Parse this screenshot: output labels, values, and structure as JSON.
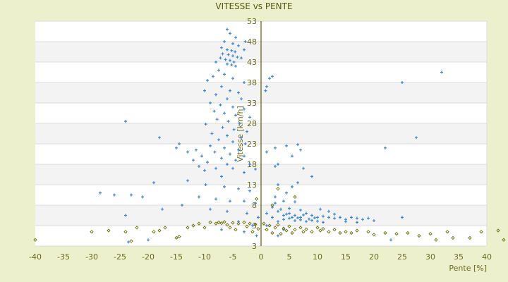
{
  "chart_data": {
    "type": "scatter",
    "title": "VITESSE vs PENTE",
    "xlabel": "Pente [%]",
    "ylabel": "Vitesse [km/h]",
    "xlim": [
      -40,
      40
    ],
    "ylim": [
      -2,
      53
    ],
    "xticks": [
      "-40",
      "-35",
      "-30",
      "-25",
      "-20",
      "-15",
      "-10",
      "-5",
      "0",
      "5",
      "10",
      "15",
      "20",
      "25",
      "30",
      "35",
      "40"
    ],
    "yticks": [
      "53",
      "48",
      "43",
      "38",
      "33",
      "28",
      "23",
      "18",
      "13",
      "8",
      "3",
      "3"
    ],
    "grid": true,
    "legend": "none",
    "colors": {
      "series1": "#3a86d6",
      "series2": "#6b6f00",
      "axis": "#5a5a00",
      "band": "#f3f3f3"
    },
    "series": [
      {
        "marker": "plus",
        "points": [
          [
            -6,
            51
          ],
          [
            -5.5,
            50
          ],
          [
            -4.5,
            49
          ],
          [
            -6.5,
            48
          ],
          [
            -5,
            47.5
          ],
          [
            -4,
            47
          ],
          [
            -7,
            46.5
          ],
          [
            -6,
            46
          ],
          [
            -5.2,
            45.8
          ],
          [
            -4.6,
            45.5
          ],
          [
            -6.8,
            45
          ],
          [
            -5.8,
            44.8
          ],
          [
            -5,
            44.5
          ],
          [
            -4.2,
            44.2
          ],
          [
            -7.2,
            44
          ],
          [
            -6.3,
            43.6
          ],
          [
            -5.5,
            43.4
          ],
          [
            -4.8,
            43
          ],
          [
            -6,
            42.5
          ],
          [
            -5.2,
            42.3
          ],
          [
            -4.5,
            42
          ],
          [
            -3,
            46
          ],
          [
            -2.8,
            48
          ],
          [
            -3.5,
            44
          ],
          [
            -8,
            43
          ],
          [
            -7.5,
            41
          ],
          [
            -6.5,
            40
          ],
          [
            -8.5,
            39.5
          ],
          [
            -5,
            39
          ],
          [
            -3,
            38
          ],
          [
            -9.5,
            38.5
          ],
          [
            -7,
            37
          ],
          [
            -5.5,
            36
          ],
          [
            -4,
            35.5
          ],
          [
            -10,
            36
          ],
          [
            -8,
            35
          ],
          [
            -6,
            34
          ],
          [
            -3.5,
            34
          ],
          [
            -9,
            33
          ],
          [
            -7.2,
            32.5
          ],
          [
            -5,
            32
          ],
          [
            -3,
            31.5
          ],
          [
            -8.3,
            31
          ],
          [
            -6.5,
            30.5
          ],
          [
            -4.5,
            30
          ],
          [
            -2,
            29.5
          ],
          [
            -7.8,
            29
          ],
          [
            -5.8,
            28.5
          ],
          [
            -3.8,
            28
          ],
          [
            -9.8,
            27.8
          ],
          [
            -6.8,
            27
          ],
          [
            -4.8,
            26.5
          ],
          [
            -2.5,
            26
          ],
          [
            -8.7,
            25.5
          ],
          [
            -6,
            25
          ],
          [
            -3.5,
            24.5
          ],
          [
            -7.5,
            24
          ],
          [
            -5,
            23.5
          ],
          [
            -2.8,
            23
          ],
          [
            -9,
            22.5
          ],
          [
            -6.5,
            22
          ],
          [
            -4,
            21.5
          ],
          [
            -11.5,
            21.5
          ],
          [
            -8.2,
            21
          ],
          [
            -5.5,
            20.5
          ],
          [
            -3,
            20
          ],
          [
            -10.5,
            20
          ],
          [
            -7,
            19.5
          ],
          [
            -4.5,
            19
          ],
          [
            -12,
            19
          ],
          [
            -9.5,
            18.5
          ],
          [
            -6,
            18
          ],
          [
            -2,
            18
          ],
          [
            -11,
            17.5
          ],
          [
            -8,
            17
          ],
          [
            -5,
            17
          ],
          [
            -1,
            16.8
          ],
          [
            -10,
            16.5
          ],
          [
            -3,
            16
          ],
          [
            -7,
            15
          ],
          [
            -13,
            14
          ],
          [
            -9.8,
            13
          ],
          [
            -6.5,
            12.5
          ],
          [
            -4,
            12
          ],
          [
            -2,
            11.5
          ],
          [
            -11,
            10
          ],
          [
            -8,
            9.5
          ],
          [
            -5.5,
            9
          ],
          [
            -3,
            9
          ],
          [
            -1,
            8.5
          ],
          [
            -9,
            7
          ],
          [
            -6,
            6.5
          ],
          [
            -2.5,
            6
          ],
          [
            -0.5,
            5
          ],
          [
            -4,
            4
          ],
          [
            -1.5,
            3
          ],
          [
            -7,
            2
          ],
          [
            -3,
            1.5
          ],
          [
            -0.8,
            0.5
          ],
          [
            -24,
            28.5
          ],
          [
            -18,
            24.5
          ],
          [
            -15,
            22
          ],
          [
            -14.5,
            23
          ],
          [
            -13,
            21
          ],
          [
            -19,
            13.5
          ],
          [
            -26,
            10.5
          ],
          [
            -28.5,
            11
          ],
          [
            -23,
            10.5
          ],
          [
            -21,
            10
          ],
          [
            -17.5,
            7
          ],
          [
            -14,
            8
          ],
          [
            -24,
            5.5
          ],
          [
            -23.5,
            -1
          ],
          [
            -20,
            -0.5
          ],
          [
            1,
            37
          ],
          [
            1.5,
            39
          ],
          [
            2,
            39.5
          ],
          [
            0.8,
            36
          ],
          [
            2.5,
            22
          ],
          [
            1,
            21
          ],
          [
            4.5,
            22.5
          ],
          [
            6.5,
            22.8
          ],
          [
            5.5,
            20
          ],
          [
            7,
            21.5
          ],
          [
            9,
            15
          ],
          [
            2.5,
            17.5
          ],
          [
            3,
            18
          ],
          [
            7.5,
            17
          ],
          [
            3,
            13
          ],
          [
            5.5,
            12.5
          ],
          [
            6.5,
            13.5
          ],
          [
            4.5,
            11
          ],
          [
            2.5,
            10
          ],
          [
            25,
            38
          ],
          [
            32,
            40.5
          ],
          [
            27.5,
            24.5
          ],
          [
            22,
            22
          ],
          [
            1,
            6
          ],
          [
            2,
            5
          ],
          [
            3,
            6.5
          ],
          [
            4,
            5.5
          ],
          [
            5,
            6
          ],
          [
            6,
            5.5
          ],
          [
            7,
            5
          ],
          [
            8,
            6
          ],
          [
            9,
            5.5
          ],
          [
            10,
            5
          ],
          [
            11,
            5.3
          ],
          [
            12,
            5
          ],
          [
            13,
            4.8
          ],
          [
            14,
            5
          ],
          [
            15,
            4.5
          ],
          [
            16,
            5
          ],
          [
            17,
            4.8
          ],
          [
            18,
            4.5
          ],
          [
            19,
            4.8
          ],
          [
            20,
            4.2
          ],
          [
            25,
            5
          ],
          [
            3,
            4
          ],
          [
            4,
            4.5
          ],
          [
            5,
            4.8
          ],
          [
            6,
            4.2
          ],
          [
            7,
            4.4
          ],
          [
            8,
            4
          ],
          [
            9,
            4.3
          ],
          [
            10,
            4.1
          ],
          [
            11,
            3.8
          ],
          [
            4.5,
            5.8
          ],
          [
            5.5,
            5
          ],
          [
            6.5,
            4.9
          ],
          [
            7.5,
            5.6
          ],
          [
            8.5,
            4.6
          ],
          [
            9.5,
            4.9
          ],
          [
            2,
            7.5
          ],
          [
            3.5,
            7
          ],
          [
            5,
            7.2
          ],
          [
            7,
            6.8
          ],
          [
            1,
            3
          ],
          [
            4,
            2
          ],
          [
            3,
            0.5
          ],
          [
            23,
            -0.5
          ],
          [
            15,
            4
          ],
          [
            17,
            3.8
          ],
          [
            13,
            5.8
          ],
          [
            12,
            6.5
          ],
          [
            10.5,
            7
          ],
          [
            2.5,
            8.5
          ],
          [
            4,
            9
          ],
          [
            6,
            8.8
          ]
        ]
      },
      {
        "marker": "diamond",
        "points": [
          [
            -40,
            -0.5
          ],
          [
            -30,
            1.5
          ],
          [
            -27,
            1.8
          ],
          [
            -24,
            1.5
          ],
          [
            -23,
            -0.8
          ],
          [
            -22,
            2.5
          ],
          [
            -19,
            1.5
          ],
          [
            -18,
            1.8
          ],
          [
            -17,
            2.5
          ],
          [
            -15,
            0
          ],
          [
            -14.5,
            0.3
          ],
          [
            -13,
            2.5
          ],
          [
            -12,
            3
          ],
          [
            -11,
            3.5
          ],
          [
            -10,
            2.5
          ],
          [
            -9,
            3.8
          ],
          [
            -8,
            3.5
          ],
          [
            -7.5,
            3.8
          ],
          [
            -7,
            3.6
          ],
          [
            -6.5,
            3.9
          ],
          [
            -6,
            3.2
          ],
          [
            -5.5,
            2.5
          ],
          [
            -5,
            3.7
          ],
          [
            -4.5,
            2
          ],
          [
            -4,
            3.5
          ],
          [
            -3,
            3.8
          ],
          [
            -2.5,
            2.8
          ],
          [
            -2,
            3.5
          ],
          [
            -1.5,
            1.5
          ],
          [
            -1,
            3.3
          ],
          [
            -0.5,
            2.2
          ],
          [
            0.5,
            3.5
          ],
          [
            1,
            2
          ],
          [
            1.5,
            3
          ],
          [
            2,
            1.2
          ],
          [
            2.5,
            2.5
          ],
          [
            3,
            3.2
          ],
          [
            3.5,
            1
          ],
          [
            4,
            2.3
          ],
          [
            4.5,
            1.8
          ],
          [
            5,
            2.8
          ],
          [
            5.5,
            1.2
          ],
          [
            6,
            2
          ],
          [
            7,
            2.5
          ],
          [
            7.5,
            1.5
          ],
          [
            8,
            2.1
          ],
          [
            9,
            1.5
          ],
          [
            10,
            2.5
          ],
          [
            10.5,
            1.8
          ],
          [
            11,
            2.2
          ],
          [
            12,
            1.5
          ],
          [
            13,
            2
          ],
          [
            14,
            1.2
          ],
          [
            15,
            1.5
          ],
          [
            16,
            1.2
          ],
          [
            17,
            1.8
          ],
          [
            19,
            1.5
          ],
          [
            20,
            0.8
          ],
          [
            22,
            1.2
          ],
          [
            24,
            1
          ],
          [
            26,
            1.2
          ],
          [
            28,
            0.5
          ],
          [
            30,
            1
          ],
          [
            31,
            -0.5
          ],
          [
            33,
            1.5
          ],
          [
            34,
            0
          ],
          [
            37,
            0
          ],
          [
            39,
            1.5
          ],
          [
            42,
            1.8
          ],
          [
            43,
            -0.5
          ],
          [
            2,
            8
          ],
          [
            3,
            12
          ],
          [
            6,
            10
          ],
          [
            -0.8,
            9.5
          ]
        ]
      }
    ]
  }
}
